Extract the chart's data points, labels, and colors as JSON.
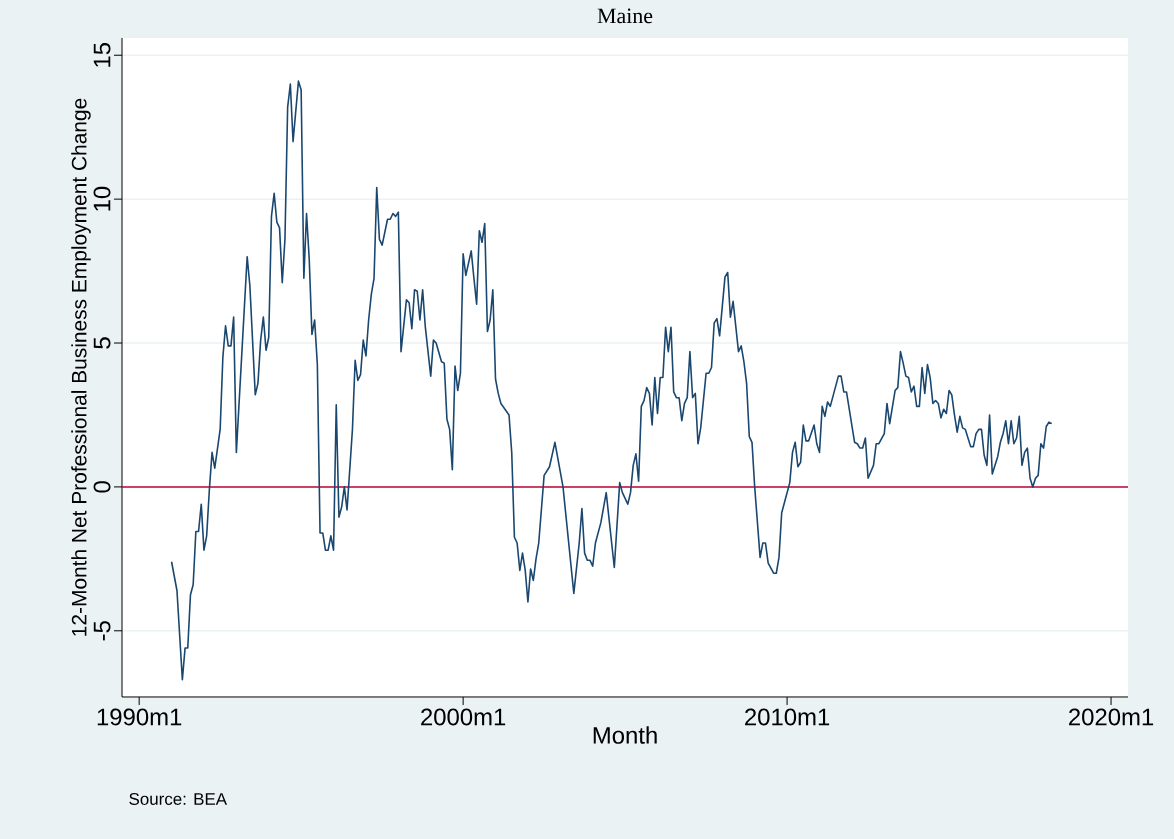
{
  "chart_data": {
    "type": "line",
    "title": "Maine",
    "xlabel": "Month",
    "ylabel": "12-Month Net Professional Business Employment Change",
    "annotations": [
      "Source: BEA"
    ],
    "x": [
      "1991-01",
      "1991-03",
      "1991-05",
      "1991-06",
      "1991-07",
      "1991-08",
      "1991-09",
      "1991-10",
      "1991-11",
      "1991-12",
      "1992-01",
      "1992-02",
      "1992-03",
      "1992-04",
      "1992-05",
      "1992-07",
      "1992-08",
      "1992-09",
      "1992-10",
      "1992-11",
      "1992-12",
      "1993-01",
      "1993-05",
      "1993-06",
      "1993-08",
      "1993-09",
      "1993-10",
      "1993-11",
      "1993-12",
      "1994-01",
      "1994-02",
      "1994-03",
      "1994-04",
      "1994-05",
      "1994-06",
      "1994-07",
      "1994-08",
      "1994-09",
      "1994-10",
      "1994-12",
      "1995-01",
      "1995-02",
      "1995-03",
      "1995-04",
      "1995-05",
      "1995-06",
      "1995-07",
      "1995-08",
      "1995-09",
      "1995-10",
      "1995-11",
      "1995-12",
      "1996-01",
      "1996-02",
      "1996-03",
      "1996-04",
      "1996-05",
      "1996-06",
      "1996-08",
      "1996-09",
      "1996-10",
      "1996-11",
      "1996-12",
      "1997-01",
      "1997-02",
      "1997-03",
      "1997-04",
      "1997-05",
      "1997-06",
      "1997-07",
      "1997-09",
      "1997-10",
      "1997-11",
      "1997-12",
      "1998-01",
      "1998-02",
      "1998-03",
      "1998-04",
      "1998-05",
      "1998-06",
      "1998-07",
      "1998-08",
      "1998-09",
      "1998-10",
      "1998-11",
      "1999-01",
      "1999-02",
      "1999-03",
      "1999-05",
      "1999-06",
      "1999-07",
      "1999-08",
      "1999-09",
      "1999-10",
      "1999-11",
      "1999-12",
      "2000-01",
      "2000-02",
      "2000-04",
      "2000-05",
      "2000-06",
      "2000-07",
      "2000-08",
      "2000-09",
      "2000-10",
      "2000-11",
      "2000-12",
      "2001-01",
      "2001-02",
      "2001-03",
      "2001-06",
      "2001-07",
      "2001-08",
      "2001-09",
      "2001-10",
      "2001-11",
      "2001-12",
      "2002-01",
      "2002-02",
      "2002-03",
      "2002-04",
      "2002-05",
      "2002-07",
      "2002-09",
      "2002-11",
      "2003-02",
      "2003-06",
      "2003-08",
      "2003-09",
      "2003-10",
      "2003-11",
      "2003-12",
      "2004-01",
      "2004-02",
      "2004-04",
      "2004-06",
      "2004-09",
      "2004-11",
      "2004-12",
      "2005-02",
      "2005-03",
      "2005-04",
      "2005-05",
      "2005-06",
      "2005-07",
      "2005-08",
      "2005-09",
      "2005-10",
      "2005-11",
      "2005-12",
      "2006-01",
      "2006-02",
      "2006-03",
      "2006-04",
      "2006-05",
      "2006-06",
      "2006-07",
      "2006-08",
      "2006-09",
      "2006-10",
      "2006-11",
      "2006-12",
      "2007-01",
      "2007-02",
      "2007-03",
      "2007-04",
      "2007-05",
      "2007-07",
      "2007-08",
      "2007-09",
      "2007-10",
      "2007-11",
      "2007-12",
      "2008-02",
      "2008-03",
      "2008-04",
      "2008-05",
      "2008-07",
      "2008-08",
      "2008-09",
      "2008-10",
      "2008-11",
      "2008-12",
      "2009-01",
      "2009-03",
      "2009-04",
      "2009-05",
      "2009-06",
      "2009-08",
      "2009-09",
      "2009-10",
      "2009-11",
      "2009-12",
      "2010-02",
      "2010-03",
      "2010-04",
      "2010-05",
      "2010-06",
      "2010-07",
      "2010-08",
      "2010-09",
      "2010-11",
      "2010-12",
      "2011-01",
      "2011-02",
      "2011-03",
      "2011-04",
      "2011-05",
      "2011-08",
      "2011-09",
      "2011-10",
      "2011-11",
      "2012-02",
      "2012-03",
      "2012-04",
      "2012-05",
      "2012-06",
      "2012-07",
      "2012-09",
      "2012-10",
      "2012-11",
      "2013-01",
      "2013-02",
      "2013-03",
      "2013-05",
      "2013-06",
      "2013-07",
      "2013-08",
      "2013-09",
      "2013-10",
      "2013-11",
      "2013-12",
      "2014-01",
      "2014-02",
      "2014-03",
      "2014-04",
      "2014-05",
      "2014-06",
      "2014-07",
      "2014-08",
      "2014-09",
      "2014-10",
      "2014-11",
      "2014-12",
      "2015-01",
      "2015-02",
      "2015-03",
      "2015-04",
      "2015-05",
      "2015-06",
      "2015-07",
      "2015-09",
      "2015-10",
      "2015-11",
      "2015-12",
      "2016-01",
      "2016-02",
      "2016-03",
      "2016-04",
      "2016-05",
      "2016-07",
      "2016-08",
      "2016-09",
      "2016-10",
      "2016-11",
      "2016-12",
      "2017-01",
      "2017-02",
      "2017-03",
      "2017-04",
      "2017-05",
      "2017-06",
      "2017-07",
      "2017-08",
      "2017-09",
      "2017-10",
      "2017-11",
      "2017-12",
      "2018-01",
      "2018-02",
      "2018-03"
    ],
    "values": [
      -2.6,
      -3.6,
      -6.7,
      -5.6,
      -5.6,
      -3.75,
      -3.4,
      -1.55,
      -1.55,
      -0.6,
      -2.2,
      -1.7,
      -0.1,
      1.2,
      0.65,
      2.0,
      4.5,
      5.6,
      4.9,
      4.9,
      5.9,
      1.2,
      8.0,
      7.0,
      3.2,
      3.6,
      5.1,
      5.9,
      4.75,
      5.2,
      9.4,
      10.2,
      9.2,
      9.0,
      7.1,
      8.6,
      13.2,
      14.0,
      12.0,
      14.1,
      13.8,
      7.25,
      9.5,
      7.9,
      5.3,
      5.8,
      4.25,
      -1.6,
      -1.6,
      -2.2,
      -2.2,
      -1.7,
      -2.2,
      2.85,
      -1.05,
      -0.7,
      0.0,
      -0.8,
      2.0,
      4.4,
      3.7,
      3.9,
      5.1,
      4.55,
      5.8,
      6.7,
      7.25,
      10.4,
      8.6,
      8.4,
      9.3,
      9.3,
      9.5,
      9.4,
      9.55,
      4.7,
      5.6,
      6.5,
      6.4,
      5.5,
      6.85,
      6.8,
      5.8,
      6.85,
      5.55,
      3.85,
      5.1,
      5.0,
      4.35,
      4.3,
      2.35,
      2.0,
      0.6,
      4.2,
      3.35,
      3.95,
      8.1,
      7.35,
      8.2,
      7.25,
      6.35,
      8.9,
      8.5,
      9.15,
      5.4,
      5.8,
      6.85,
      3.75,
      3.25,
      2.9,
      2.5,
      1.2,
      -1.75,
      -1.95,
      -2.9,
      -2.3,
      -2.9,
      -4.0,
      -2.85,
      -3.25,
      -2.5,
      -1.95,
      0.4,
      0.7,
      1.55,
      0.0,
      -3.7,
      -1.95,
      -0.75,
      -2.3,
      -2.55,
      -2.55,
      -2.75,
      -1.95,
      -1.25,
      -0.2,
      -2.8,
      0.15,
      -0.2,
      -0.6,
      -0.2,
      0.75,
      1.15,
      0.2,
      2.8,
      3.0,
      3.45,
      3.25,
      2.15,
      3.8,
      2.55,
      3.8,
      3.8,
      5.55,
      4.7,
      5.55,
      3.3,
      3.1,
      3.1,
      2.3,
      2.9,
      3.1,
      4.7,
      3.1,
      3.25,
      1.5,
      2.05,
      3.95,
      3.95,
      4.15,
      5.7,
      5.85,
      5.25,
      7.3,
      7.45,
      5.9,
      6.45,
      4.7,
      4.9,
      4.35,
      3.6,
      1.75,
      1.55,
      0.0,
      -2.45,
      -1.95,
      -1.95,
      -2.65,
      -3.0,
      -3.0,
      -2.45,
      -0.9,
      -0.55,
      0.15,
      1.2,
      1.55,
      0.7,
      0.85,
      2.15,
      1.6,
      1.6,
      2.15,
      1.5,
      1.2,
      2.8,
      2.45,
      2.95,
      2.8,
      3.85,
      3.85,
      3.3,
      3.3,
      1.55,
      1.5,
      1.35,
      1.35,
      1.7,
      0.3,
      0.75,
      1.5,
      1.5,
      1.85,
      2.9,
      2.2,
      3.35,
      3.45,
      4.7,
      4.3,
      3.85,
      3.8,
      3.3,
      3.5,
      2.8,
      2.8,
      4.15,
      3.25,
      4.25,
      3.8,
      2.9,
      3.0,
      2.9,
      2.4,
      2.7,
      2.55,
      3.35,
      3.2,
      2.5,
      1.9,
      2.45,
      2.05,
      2.0,
      1.4,
      1.4,
      1.85,
      2.0,
      2.0,
      1.1,
      0.75,
      2.5,
      0.45,
      1.05,
      1.55,
      1.85,
      2.3,
      1.5,
      2.3,
      1.5,
      1.7,
      2.45,
      0.75,
      1.2,
      1.35,
      0.3,
      0.0,
      0.3,
      0.4,
      1.5,
      1.35,
      2.1,
      2.25,
      2.2
    ],
    "color": "#1a476f",
    "line_style": "solid",
    "marker": "none",
    "grid": "y",
    "xlim": [
      "1989-06-21",
      "2020-07-10"
    ],
    "ylim": [
      -7.3,
      15.6
    ],
    "xticks": [
      {
        "value": "1990-01",
        "label": "1990m1"
      },
      {
        "value": "2000-01",
        "label": "2000m1"
      },
      {
        "value": "2010-01",
        "label": "2010m1"
      },
      {
        "value": "2020-01",
        "label": "2020m1"
      }
    ],
    "yticks": [
      -5,
      0,
      5,
      10,
      15
    ],
    "ref_lines": [
      {
        "axis": "y",
        "value": 0,
        "color": "#c10534"
      }
    ]
  }
}
